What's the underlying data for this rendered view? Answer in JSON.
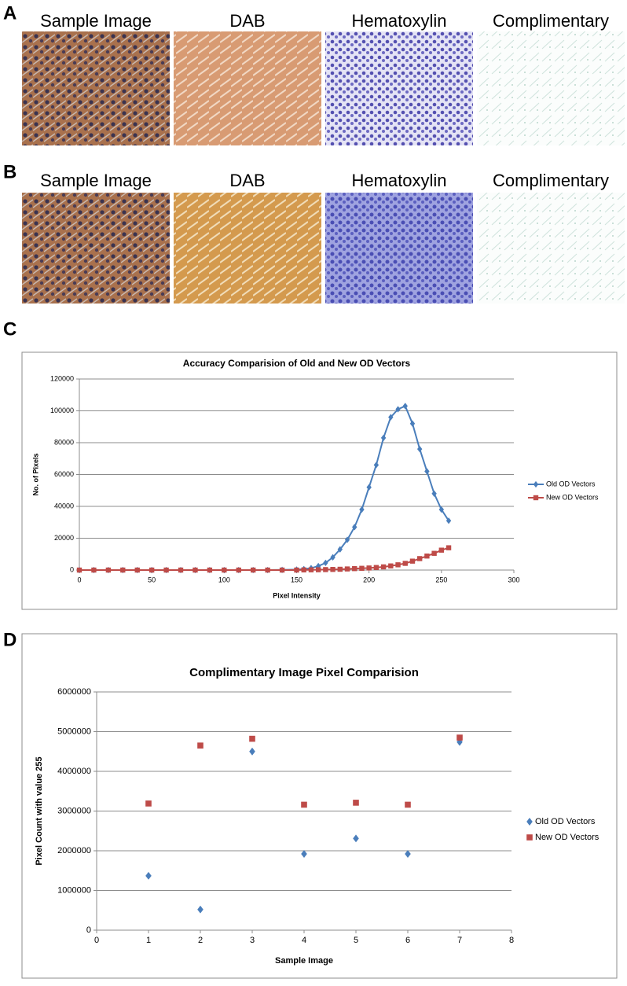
{
  "panels": [
    {
      "letter": "A",
      "titles": [
        "Sample Image",
        "DAB",
        "Hematoxylin",
        "Complimentary"
      ]
    },
    {
      "letter": "B",
      "titles": [
        "Sample Image",
        "DAB",
        "Hematoxylin",
        "Complimentary"
      ]
    },
    {
      "letter": "C"
    },
    {
      "letter": "D"
    }
  ],
  "chart_data": [
    {
      "type": "line",
      "title": "Accuracy Comparision of Old and New OD Vectors",
      "x_label": "Pixel Intensity",
      "y_label": "No. of Pixels",
      "x": [
        0,
        10,
        20,
        30,
        40,
        50,
        60,
        70,
        80,
        90,
        100,
        110,
        120,
        130,
        140,
        150,
        155,
        160,
        165,
        170,
        175,
        180,
        185,
        190,
        195,
        200,
        205,
        210,
        215,
        220,
        225,
        230,
        235,
        240,
        245,
        250,
        255
      ],
      "series": [
        {
          "name": "Old OD Vectors",
          "color": "#4a7ebb",
          "marker": "diamond",
          "values": [
            0,
            0,
            0,
            0,
            0,
            0,
            0,
            0,
            0,
            0,
            0,
            0,
            0,
            0,
            100,
            300,
            600,
            1200,
            2500,
            4500,
            8000,
            13000,
            19000,
            27000,
            38000,
            52000,
            66000,
            83000,
            96000,
            101000,
            103000,
            92000,
            76000,
            62000,
            48000,
            38000,
            31000
          ]
        },
        {
          "name": "New OD Vectors",
          "color": "#be4b48",
          "marker": "square",
          "values": [
            0,
            0,
            0,
            0,
            0,
            0,
            0,
            0,
            0,
            0,
            0,
            0,
            0,
            0,
            0,
            0,
            100,
            150,
            200,
            300,
            400,
            500,
            700,
            900,
            1100,
            1300,
            1600,
            2000,
            2600,
            3300,
            4200,
            5600,
            7200,
            8800,
            10500,
            12500,
            14000
          ]
        }
      ],
      "xlim": [
        0,
        300
      ],
      "xticks": [
        0,
        50,
        100,
        150,
        200,
        250,
        300
      ],
      "ylim": [
        0,
        120000
      ],
      "yticks": [
        0,
        20000,
        40000,
        60000,
        80000,
        100000,
        120000
      ],
      "grid": true,
      "legend": "right"
    },
    {
      "type": "scatter",
      "title": "Complimentary Image Pixel Comparision",
      "x_label": "Sample Image",
      "y_label": "Pixel Count with value 255",
      "x": [
        1,
        2,
        3,
        4,
        5,
        6,
        7
      ],
      "series": [
        {
          "name": "Old OD Vectors",
          "color": "#4a7ebb",
          "marker": "diamond",
          "values": [
            1370000,
            520000,
            4500000,
            1920000,
            2310000,
            1920000,
            4740000
          ]
        },
        {
          "name": "New OD Vectors",
          "color": "#be4b48",
          "marker": "square",
          "values": [
            3190000,
            4650000,
            4820000,
            3160000,
            3210000,
            3160000,
            4850000
          ]
        }
      ],
      "xlim": [
        0,
        8
      ],
      "xticks": [
        0,
        1,
        2,
        3,
        4,
        5,
        6,
        7,
        8
      ],
      "ylim": [
        0,
        6000000
      ],
      "yticks": [
        0,
        1000000,
        2000000,
        3000000,
        4000000,
        5000000,
        6000000
      ],
      "grid": true,
      "legend": "right"
    }
  ]
}
